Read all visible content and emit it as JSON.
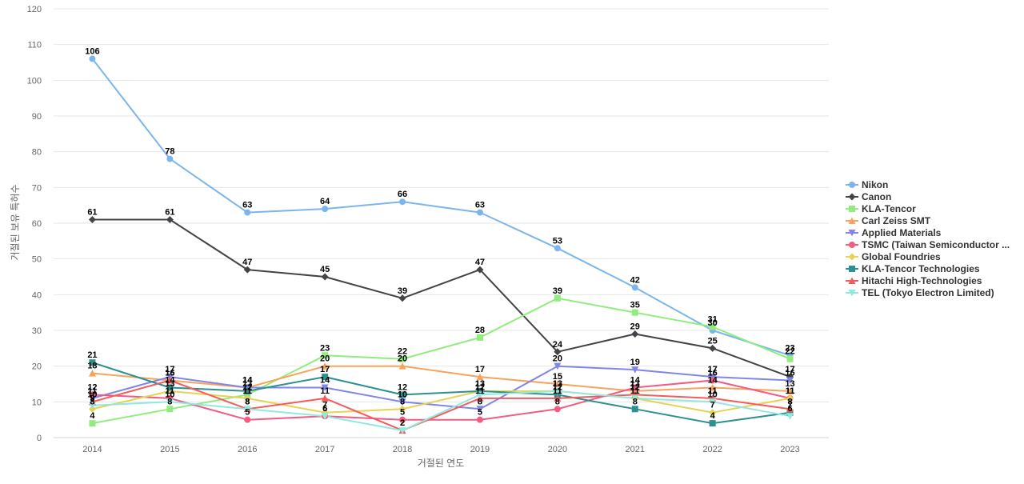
{
  "chart_data": {
    "type": "line",
    "xlabel": "거절된 연도",
    "ylabel": "거절된 보유 특허수",
    "x": [
      "2014",
      "2015",
      "2016",
      "2017",
      "2018",
      "2019",
      "2020",
      "2021",
      "2022",
      "2023"
    ],
    "ylim": [
      0,
      120
    ],
    "yticks": [
      0,
      10,
      20,
      30,
      40,
      50,
      60,
      70,
      80,
      90,
      100,
      110,
      120
    ],
    "grid": true,
    "legend_position": "right",
    "series": [
      {
        "name": "Nikon",
        "color": "#7cb5ec",
        "marker": "circle",
        "values": [
          106,
          78,
          63,
          64,
          66,
          63,
          53,
          42,
          30,
          23
        ]
      },
      {
        "name": "Canon",
        "color": "#434348",
        "marker": "diamond",
        "values": [
          61,
          61,
          47,
          45,
          39,
          47,
          24,
          29,
          25,
          17
        ]
      },
      {
        "name": "KLA-Tencor",
        "color": "#90ed7d",
        "marker": "square",
        "values": [
          4,
          8,
          12,
          23,
          22,
          28,
          39,
          35,
          31,
          22
        ]
      },
      {
        "name": "Carl Zeiss SMT",
        "color": "#f7a35c",
        "marker": "triangle",
        "values": [
          18,
          16,
          14,
          20,
          20,
          17,
          15,
          13,
          14,
          13
        ]
      },
      {
        "name": "Applied Materials",
        "color": "#8085e9",
        "marker": "triangle-down",
        "values": [
          11,
          17,
          14,
          14,
          10,
          8,
          20,
          19,
          17,
          16
        ]
      },
      {
        "name": "TSMC (Taiwan Semiconductor ...",
        "color": "#f15c80",
        "marker": "circle",
        "values": [
          12,
          11,
          5,
          6,
          5,
          5,
          8,
          14,
          16,
          11
        ]
      },
      {
        "name": "Global Foundries",
        "color": "#e4d354",
        "marker": "diamond",
        "values": [
          8,
          13,
          11,
          7,
          8,
          13,
          13,
          11,
          7,
          11
        ]
      },
      {
        "name": "KLA-Tencor Technologies",
        "color": "#2b908f",
        "marker": "square",
        "values": [
          21,
          14,
          13,
          17,
          12,
          13,
          12,
          8,
          4,
          7
        ]
      },
      {
        "name": "Hitachi High-Technologies",
        "color": "#f45b5b",
        "marker": "triangle",
        "values": [
          10,
          16,
          8,
          11,
          2,
          11,
          11,
          12,
          11,
          8
        ]
      },
      {
        "name": "TEL (Tokyo Electron Limited)",
        "color": "#91e8e1",
        "marker": "triangle-down",
        "values": [
          9,
          10,
          8,
          6,
          2,
          12,
          13,
          11,
          10,
          6
        ]
      }
    ]
  }
}
